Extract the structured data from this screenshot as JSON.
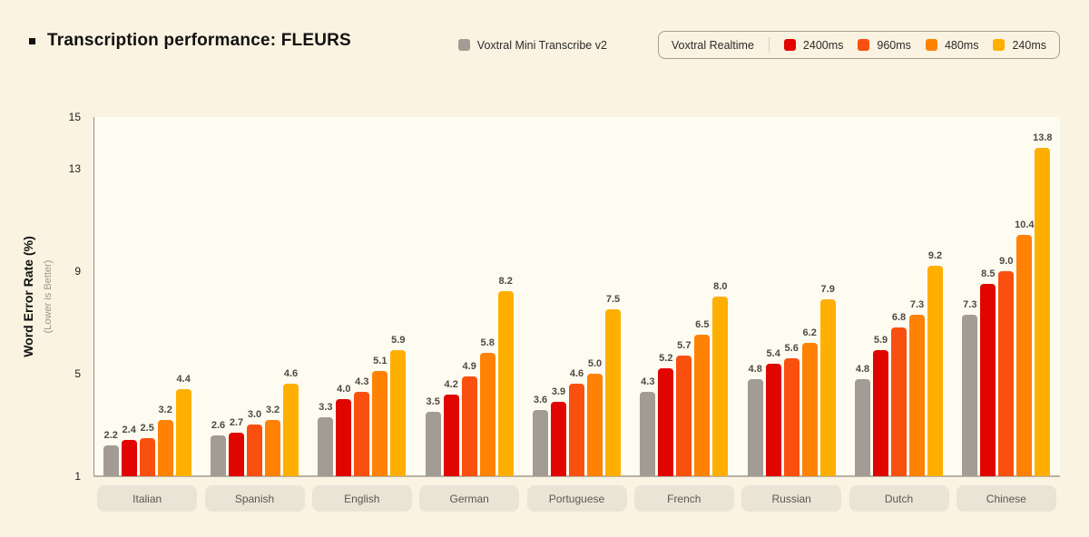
{
  "title": "Transcription performance: FLEURS",
  "colors": {
    "background": "#FAF3E1",
    "plot_background": "#FEFBF1",
    "accent_gray": "#A29C95",
    "accent_red": "#E10500",
    "accent_orange_red": "#FA500F",
    "accent_orange": "#FF8205",
    "accent_amber": "#FFAF00",
    "value_label": "#4E4A42",
    "pill_background": "#E9E4D6"
  },
  "legend": {
    "standalone_item": {
      "label": "Voxtral Mini Transcribe v2",
      "color": "#A29C95"
    },
    "group": {
      "title": "Voxtral Realtime",
      "items": [
        {
          "label": "2400ms",
          "color": "#E10500"
        },
        {
          "label": "960ms",
          "color": "#FA500F"
        },
        {
          "label": "480ms",
          "color": "#FF8205"
        },
        {
          "label": "240ms",
          "color": "#FFAF00"
        }
      ]
    }
  },
  "y_axis": {
    "title": "Word Error Rate (%)",
    "subtitle": "(Lower is Better)",
    "min": 1,
    "max": 15,
    "ticks": [
      15,
      13,
      9,
      5,
      1
    ]
  },
  "chart_data": {
    "type": "bar",
    "title": "Transcription performance: FLEURS",
    "xlabel": "",
    "ylabel": "Word Error Rate (%)",
    "ylabel_note": "(Lower is Better)",
    "ylim": [
      1,
      15
    ],
    "yticks": [
      1,
      5,
      9,
      13,
      15
    ],
    "grid": false,
    "legend_position": "top-right",
    "categories": [
      "Italian",
      "Spanish",
      "English",
      "German",
      "Portuguese",
      "French",
      "Russian",
      "Dutch",
      "Chinese"
    ],
    "series": [
      {
        "name": "Voxtral Mini Transcribe v2",
        "color": "#A29C95",
        "values": [
          2.2,
          2.6,
          3.3,
          3.5,
          3.6,
          4.3,
          4.8,
          4.8,
          7.3
        ]
      },
      {
        "name": "Voxtral Realtime 2400ms",
        "color": "#E10500",
        "values": [
          2.4,
          2.7,
          4.0,
          4.2,
          3.9,
          5.2,
          5.4,
          5.9,
          8.5
        ]
      },
      {
        "name": "Voxtral Realtime 960ms",
        "color": "#FA500F",
        "values": [
          2.5,
          3.0,
          4.3,
          4.9,
          4.6,
          5.7,
          5.6,
          6.8,
          9.0
        ]
      },
      {
        "name": "Voxtral Realtime 480ms",
        "color": "#FF8205",
        "values": [
          3.2,
          3.2,
          5.1,
          5.8,
          5.0,
          6.5,
          6.2,
          7.3,
          10.4
        ]
      },
      {
        "name": "Voxtral Realtime 240ms",
        "color": "#FFAF00",
        "values": [
          4.4,
          4.6,
          5.9,
          8.2,
          7.5,
          8.0,
          7.9,
          9.2,
          13.8
        ]
      }
    ]
  }
}
